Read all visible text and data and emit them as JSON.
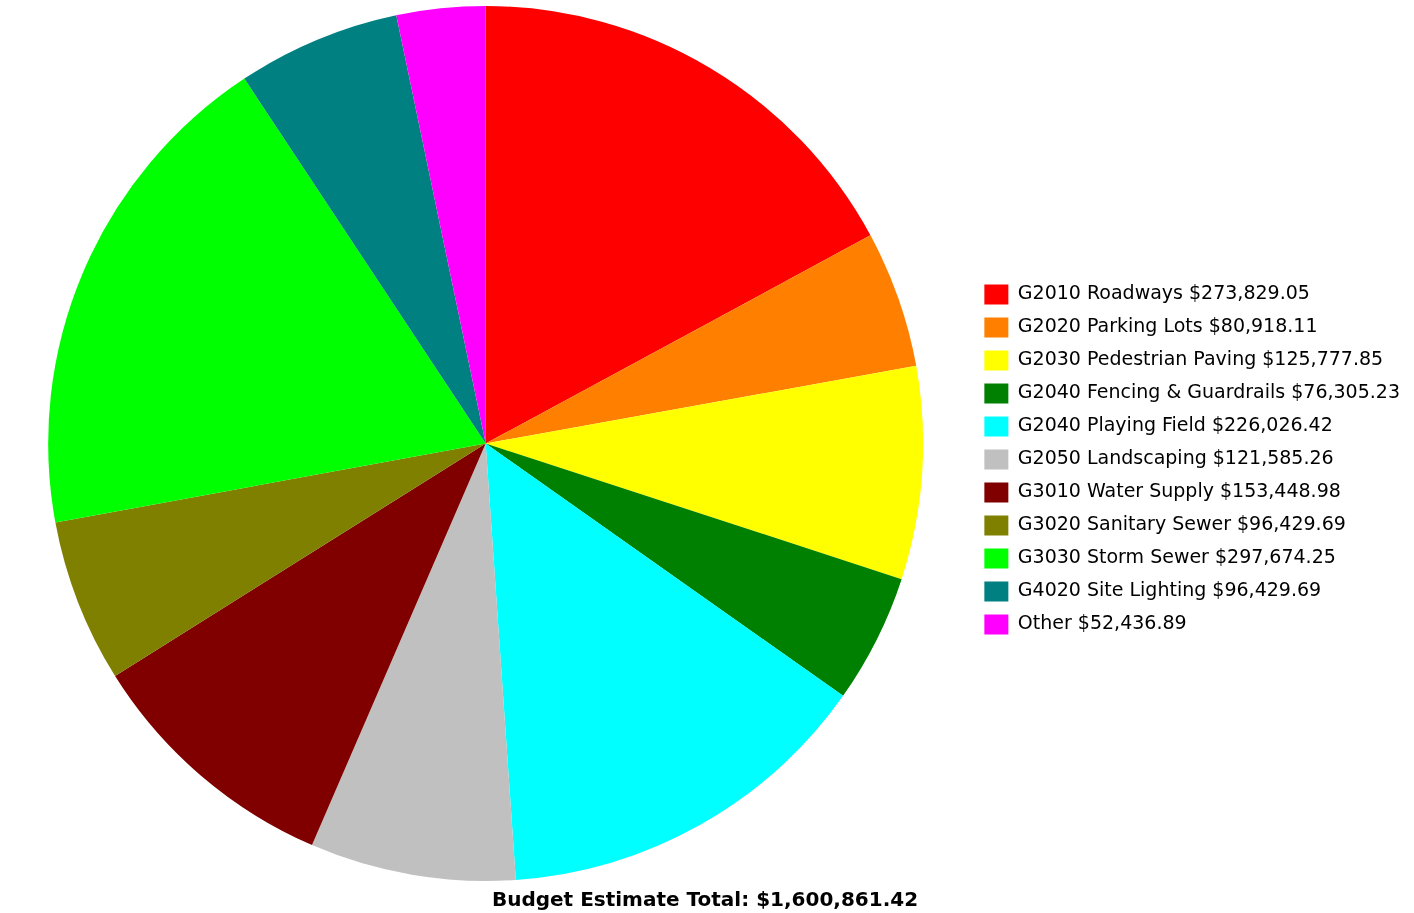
{
  "chart_data": {
    "type": "pie",
    "title": "Budget Estimate Total: $1,600,861.42",
    "categories": [
      "G2010 Roadways $273,829.05",
      "G2020 Parking Lots $80,918.11",
      "G2030 Pedestrian Paving $125,777.85",
      "G2040 Fencing & Guardrails $76,305.23",
      "G2040 Playing Field $226,026.42",
      "G2050 Landscaping $121,585.26",
      "G3010 Water Supply $153,448.98",
      "G3020 Sanitary Sewer $96,429.69",
      "G3030 Storm Sewer $297,674.25",
      "G4020 Site Lighting $96,429.69",
      "Other $52,436.89"
    ],
    "values": [
      273829.05,
      80918.11,
      125777.85,
      76305.23,
      226026.42,
      121585.26,
      153448.98,
      96429.69,
      297674.25,
      96429.69,
      52436.89
    ],
    "colors": [
      "#ff0000",
      "#ff8000",
      "#ffff00",
      "#008000",
      "#00ffff",
      "#c0c0c0",
      "#800000",
      "#808000",
      "#00ff00",
      "#008080",
      "#ff00ff"
    ],
    "legend": "right"
  }
}
